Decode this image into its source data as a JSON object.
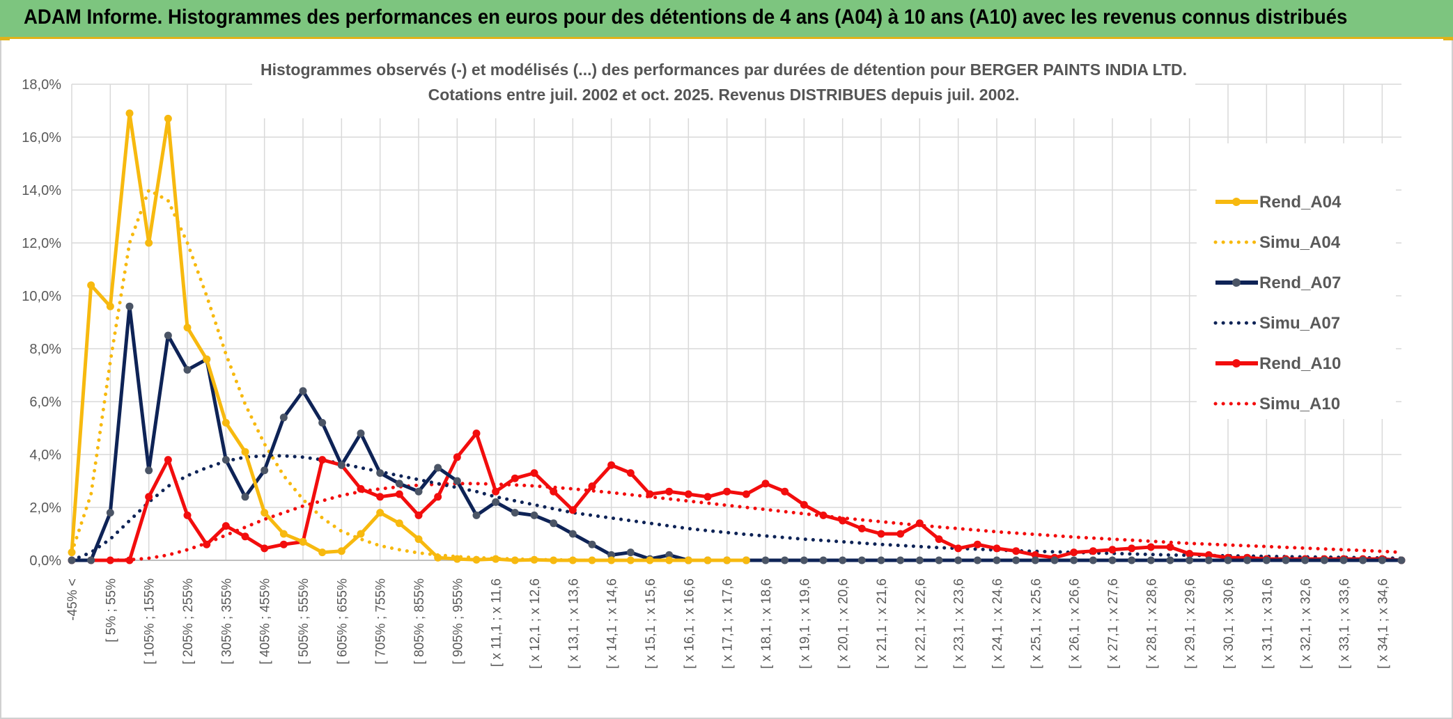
{
  "banner": {
    "title": "ADAM Informe. Histogrammes des performances en euros pour des détentions de 4 ans (A04) à 10 ans (A10) avec les revenus connus distribués"
  },
  "colors": {
    "banner_bg": "#7dc57f",
    "banner_border": "#e0b21a",
    "A04": "#f7b90f",
    "A07": "#0e2356",
    "A10": "#f20d0d",
    "marker_A07": "#4b5566"
  },
  "chart_data": {
    "type": "line",
    "title": "Histogrammes observés (-) et modélisés (...) des performances par durées de détention pour BERGER PAINTS INDIA LTD.",
    "subtitle": "Cotations entre juil. 2002 et oct. 2025. Revenus DISTRIBUES depuis juil. 2002.",
    "xlabel": "",
    "ylabel": "",
    "ylim": [
      0,
      18
    ],
    "yticks": [
      "0,0%",
      "2,0%",
      "4,0%",
      "6,0%",
      "8,0%",
      "10,0%",
      "12,0%",
      "14,0%",
      "16,0%",
      "18,0%"
    ],
    "grid": true,
    "legend_position": "top-right",
    "x_tick_labels": [
      "-45% <",
      "[ 5% ; 55%",
      "[ 105% ; 155%",
      "[ 205% ; 255%",
      "[ 305% ; 355%",
      "[ 405% ; 455%",
      "[ 505% ; 555%",
      "[ 605% ; 655%",
      "[ 705% ; 755%",
      "[ 805% ; 855%",
      "[ 905% ; 955%",
      "[ x 11,1 ; x 11,6",
      "[ x 12,1 ; x 12,6",
      "[ x 13,1 ; x 13,6",
      "[ x 14,1 ; x 14,6",
      "[ x 15,1 ; x 15,6",
      "[ x 16,1 ; x 16,6",
      "[ x 17,1 ; x 17,6",
      "[ x 18,1 ; x 18,6",
      "[ x 19,1 ; x 19,6",
      "[ x 20,1 ; x 20,6",
      "[ x 21,1 ; x 21,6",
      "[ x 22,1 ; x 22,6",
      "[ x 23,1 ; x 23,6",
      "[ x 24,1 ; x 24,6",
      "[ x 25,1 ; x 25,6",
      "[ x 26,1 ; x 26,6",
      "[ x 27,1 ; x 27,6",
      "[ x 28,1 ; x 28,6",
      "[ x 29,1 ; x 29,6",
      "[ x 30,1 ; x 30,6",
      "[ x 31,1 ; x 31,6",
      "[ x 32,1 ; x 32,6",
      "[ x 33,1 ; x 33,6",
      "[ x 34,1 ; x 34,6"
    ],
    "series": [
      {
        "name": "Rend_A04",
        "style": "solid",
        "color": "#f7b90f",
        "values": [
          0.3,
          10.4,
          9.6,
          16.9,
          12.0,
          16.7,
          8.8,
          7.6,
          5.2,
          4.1,
          1.8,
          1.0,
          0.7,
          0.3,
          0.35,
          1.0,
          1.8,
          1.4,
          0.8,
          0.1,
          0.05,
          0.02,
          0.05,
          0,
          0.02,
          0,
          0,
          0,
          0,
          0,
          0,
          0,
          0,
          0,
          0,
          0
        ]
      },
      {
        "name": "Simu_A04",
        "style": "dotted",
        "color": "#f7b90f",
        "values": [
          0.3,
          2.5,
          7.5,
          12.0,
          14.0,
          13.6,
          12.0,
          10.0,
          7.8,
          5.9,
          4.4,
          3.2,
          2.3,
          1.6,
          1.1,
          0.8,
          0.55,
          0.4,
          0.28,
          0.2,
          0.14,
          0.1,
          0.07,
          0.05,
          0.03,
          0.02,
          0.01,
          0,
          0,
          0,
          0,
          0,
          0,
          0,
          0,
          0,
          0,
          0,
          0,
          0,
          0,
          0,
          0,
          0,
          0,
          0,
          0,
          0,
          0,
          0,
          0,
          0,
          0,
          0,
          0,
          0,
          0,
          0,
          0,
          0,
          0,
          0,
          0,
          0,
          0,
          0,
          0,
          0,
          0,
          0
        ]
      },
      {
        "name": "Rend_A07",
        "style": "solid",
        "color": "#0e2356",
        "values": [
          0,
          0,
          1.8,
          9.6,
          3.4,
          8.5,
          7.2,
          7.6,
          3.8,
          2.4,
          3.4,
          5.4,
          6.4,
          5.2,
          3.6,
          4.8,
          3.3,
          2.9,
          2.6,
          3.5,
          3.0,
          1.7,
          2.2,
          1.8,
          1.7,
          1.4,
          1.0,
          0.6,
          0.2,
          0.3,
          0.05,
          0.2,
          0,
          0,
          0,
          0,
          0,
          0,
          0,
          0,
          0,
          0,
          0,
          0,
          0,
          0,
          0,
          0,
          0,
          0,
          0,
          0,
          0,
          0,
          0,
          0,
          0,
          0,
          0,
          0,
          0,
          0,
          0,
          0,
          0,
          0,
          0,
          0,
          0,
          0
        ]
      },
      {
        "name": "Simu_A07",
        "style": "dotted",
        "color": "#0e2356",
        "values": [
          0,
          0.3,
          0.8,
          1.5,
          2.2,
          2.8,
          3.2,
          3.5,
          3.75,
          3.9,
          3.95,
          3.95,
          3.9,
          3.8,
          3.65,
          3.5,
          3.35,
          3.2,
          3.05,
          2.9,
          2.75,
          2.6,
          2.4,
          2.25,
          2.1,
          1.95,
          1.8,
          1.7,
          1.6,
          1.5,
          1.4,
          1.3,
          1.2,
          1.12,
          1.05,
          0.98,
          0.92,
          0.86,
          0.8,
          0.75,
          0.7,
          0.65,
          0.6,
          0.56,
          0.52,
          0.48,
          0.45,
          0.42,
          0.39,
          0.36,
          0.34,
          0.32,
          0.3,
          0.28,
          0.26,
          0.24,
          0.22,
          0.2,
          0.19,
          0.18,
          0.17,
          0.16,
          0.15,
          0.14,
          0.13,
          0.12,
          0.11,
          0.1,
          0.09,
          0.08
        ]
      },
      {
        "name": "Rend_A10",
        "style": "solid",
        "color": "#f20d0d",
        "values": [
          0,
          0,
          0,
          0,
          2.4,
          3.8,
          1.7,
          0.6,
          1.3,
          0.9,
          0.45,
          0.6,
          0.7,
          3.8,
          3.6,
          2.7,
          2.4,
          2.5,
          1.7,
          2.4,
          3.9,
          4.8,
          2.6,
          3.1,
          3.3,
          2.6,
          1.9,
          2.8,
          3.6,
          3.3,
          2.5,
          2.6,
          2.5,
          2.4,
          2.6,
          2.5,
          2.9,
          2.6,
          2.1,
          1.7,
          1.5,
          1.2,
          1.0,
          1.0,
          1.4,
          0.8,
          0.45,
          0.6,
          0.45,
          0.35,
          0.2,
          0.1,
          0.3,
          0.35,
          0.4,
          0.45,
          0.5,
          0.5,
          0.25,
          0.2,
          0.1,
          0.1,
          0.05,
          0.05,
          0.05,
          0.05,
          0.05,
          0.05,
          0.05,
          0
        ]
      },
      {
        "name": "Simu_A10",
        "style": "dotted",
        "color": "#f20d0d",
        "values": [
          0,
          0,
          0,
          0.02,
          0.08,
          0.2,
          0.4,
          0.65,
          0.95,
          1.25,
          1.55,
          1.8,
          2.05,
          2.25,
          2.45,
          2.6,
          2.7,
          2.78,
          2.84,
          2.88,
          2.9,
          2.9,
          2.88,
          2.85,
          2.81,
          2.76,
          2.7,
          2.63,
          2.56,
          2.48,
          2.4,
          2.32,
          2.24,
          2.16,
          2.08,
          2.0,
          1.92,
          1.84,
          1.76,
          1.68,
          1.6,
          1.53,
          1.46,
          1.39,
          1.32,
          1.26,
          1.2,
          1.14,
          1.08,
          1.03,
          0.98,
          0.93,
          0.88,
          0.84,
          0.8,
          0.76,
          0.72,
          0.68,
          0.64,
          0.61,
          0.58,
          0.55,
          0.52,
          0.49,
          0.46,
          0.43,
          0.4,
          0.37,
          0.34,
          0.3
        ]
      }
    ]
  }
}
